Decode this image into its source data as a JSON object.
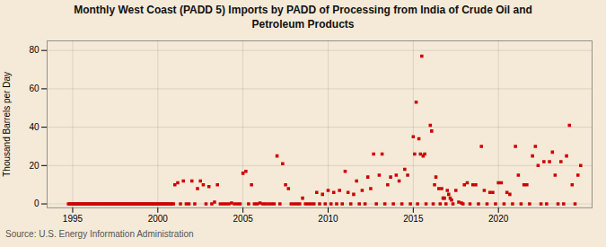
{
  "chart_data": {
    "type": "scatter",
    "title": "Monthly West Coast (PADD 5) Imports by PADD of Processing from India of Crude Oil and\nPetroleum Products",
    "ylabel": "Thousand Barrels per Day",
    "source": "Source: U.S. Energy Information Administration",
    "color": "#cc0000",
    "marker": "square",
    "grid": true,
    "xlim": [
      1993.5,
      2025.5
    ],
    "ylim": [
      -2,
      85
    ],
    "xticks": [
      1995,
      2000,
      2005,
      2010,
      2015,
      2020
    ],
    "yticks": [
      0,
      20,
      40,
      60,
      80
    ],
    "x": [
      1994.75,
      1994.83,
      1994.92,
      1995.0,
      1995.08,
      1995.17,
      1995.25,
      1995.33,
      1995.42,
      1995.5,
      1995.58,
      1995.67,
      1995.75,
      1995.83,
      1995.92,
      1996.0,
      1996.08,
      1996.17,
      1996.25,
      1996.33,
      1996.42,
      1996.5,
      1996.58,
      1996.67,
      1996.75,
      1996.83,
      1996.92,
      1997.0,
      1997.08,
      1997.17,
      1997.25,
      1997.33,
      1997.42,
      1997.5,
      1997.58,
      1997.67,
      1997.75,
      1997.83,
      1997.92,
      1998.0,
      1998.08,
      1998.17,
      1998.25,
      1998.33,
      1998.42,
      1998.5,
      1998.58,
      1998.67,
      1998.75,
      1998.83,
      1998.92,
      1999.0,
      1999.08,
      1999.17,
      1999.25,
      1999.33,
      1999.42,
      1999.5,
      1999.58,
      1999.67,
      1999.75,
      1999.83,
      1999.92,
      2000.0,
      2000.08,
      2000.17,
      2000.25,
      2000.33,
      2000.42,
      2000.5,
      2000.58,
      2000.67,
      2000.75,
      2000.83,
      2000.92,
      2001.0,
      2001.17,
      2001.33,
      2001.5,
      2001.67,
      2001.83,
      2002.0,
      2002.17,
      2002.33,
      2002.5,
      2002.67,
      2002.83,
      2003.0,
      2003.17,
      2003.33,
      2003.5,
      2003.67,
      2003.83,
      2004.0,
      2004.17,
      2004.33,
      2004.5,
      2004.67,
      2004.83,
      2005.0,
      2005.17,
      2005.33,
      2005.5,
      2005.67,
      2005.83,
      2006.0,
      2006.17,
      2006.33,
      2006.5,
      2006.67,
      2006.83,
      2007.0,
      2007.17,
      2007.33,
      2007.5,
      2007.67,
      2007.83,
      2008.0,
      2008.17,
      2008.33,
      2008.5,
      2008.67,
      2008.83,
      2009.0,
      2009.17,
      2009.33,
      2009.5,
      2009.67,
      2009.83,
      2010.0,
      2010.17,
      2010.33,
      2010.5,
      2010.67,
      2010.83,
      2011.0,
      2011.17,
      2011.33,
      2011.5,
      2011.67,
      2011.83,
      2012.0,
      2012.17,
      2012.33,
      2012.5,
      2012.67,
      2012.83,
      2013.0,
      2013.17,
      2013.33,
      2013.5,
      2013.67,
      2013.83,
      2014.0,
      2014.17,
      2014.33,
      2014.5,
      2014.67,
      2014.83,
      2015.0,
      2015.08,
      2015.17,
      2015.25,
      2015.33,
      2015.42,
      2015.5,
      2015.58,
      2015.67,
      2015.75,
      2016.0,
      2016.08,
      2016.17,
      2016.25,
      2016.33,
      2016.5,
      2016.58,
      2016.67,
      2016.75,
      2016.83,
      2016.92,
      2017.0,
      2017.08,
      2017.17,
      2017.25,
      2017.33,
      2017.5,
      2017.67,
      2017.83,
      2017.92,
      2018.0,
      2018.17,
      2018.33,
      2018.5,
      2018.67,
      2018.83,
      2019.0,
      2019.17,
      2019.33,
      2019.5,
      2019.67,
      2019.83,
      2020.0,
      2020.17,
      2020.33,
      2020.5,
      2020.67,
      2020.83,
      2021.0,
      2021.17,
      2021.33,
      2021.5,
      2021.67,
      2021.83,
      2022.0,
      2022.17,
      2022.33,
      2022.5,
      2022.67,
      2022.83,
      2023.0,
      2023.17,
      2023.33,
      2023.5,
      2023.67,
      2023.83,
      2024.0,
      2024.17,
      2024.33,
      2024.5,
      2024.67,
      2024.83
    ],
    "values": [
      0,
      0,
      0,
      0,
      0,
      0,
      0,
      0,
      0,
      0,
      0,
      0,
      0,
      0,
      0,
      0,
      0,
      0,
      0,
      0,
      0,
      0,
      0,
      0,
      0,
      0,
      0,
      0,
      0,
      0,
      0,
      0,
      0,
      0,
      0,
      0,
      0,
      0,
      0,
      0,
      0,
      0,
      0,
      0,
      0,
      0,
      0,
      0,
      0,
      0,
      0,
      0,
      0,
      0,
      0,
      0,
      0,
      0,
      0,
      0,
      0,
      0,
      0,
      0,
      0,
      0,
      0,
      0,
      0,
      0,
      0,
      0,
      0,
      0,
      0,
      10,
      11,
      0,
      12,
      0,
      0,
      12,
      0,
      8,
      12,
      10,
      0,
      9,
      0,
      1,
      10,
      0,
      0,
      0,
      0,
      0.5,
      0,
      0,
      0,
      16,
      17,
      0,
      10,
      0,
      0,
      0.5,
      0,
      0,
      0,
      0,
      0,
      25,
      0,
      21,
      10,
      8,
      0,
      0,
      0,
      0,
      3,
      0,
      0,
      0,
      0,
      6,
      0,
      5,
      0,
      7,
      0,
      6,
      0,
      7,
      0,
      17,
      6,
      0,
      5,
      12,
      0,
      7,
      0,
      14,
      8,
      26,
      0,
      15,
      26,
      0,
      10,
      14,
      0,
      15,
      12,
      0,
      18,
      15,
      0,
      35,
      26,
      53,
      0,
      34,
      26,
      77,
      25,
      26,
      0,
      41,
      38,
      0,
      10,
      14,
      8,
      0,
      8,
      3,
      3,
      0,
      7,
      5,
      3,
      2,
      0,
      7,
      1,
      0.5,
      0,
      10,
      11,
      0,
      10,
      10,
      0,
      30,
      7,
      0,
      6,
      6,
      0,
      11,
      11,
      0,
      6,
      5,
      0,
      30,
      15,
      0,
      10,
      10,
      0,
      25,
      30,
      20,
      0,
      22,
      0,
      22,
      27,
      15,
      0,
      22,
      0,
      25,
      41,
      10,
      0,
      15,
      20
    ]
  }
}
